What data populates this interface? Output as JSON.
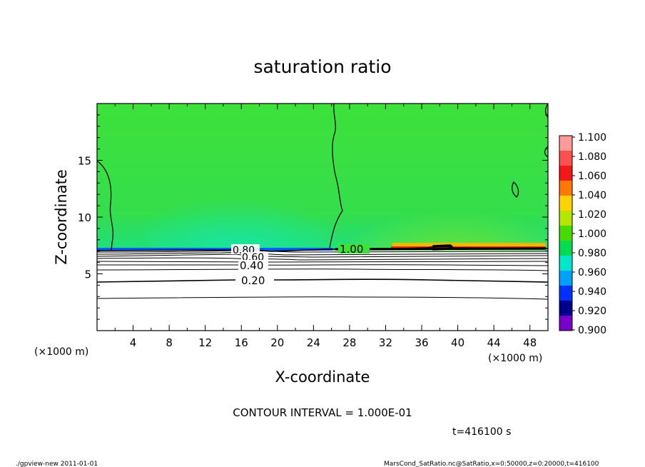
{
  "chart_data": {
    "type": "heatmap",
    "title": "saturation ratio",
    "xlabel": "X-coordinate",
    "ylabel": "Z-coordinate",
    "x_unit": "(×1000 m)",
    "z_unit": "(×1000 m)",
    "xlim": [
      0,
      50
    ],
    "ylim": [
      0,
      20
    ],
    "x_ticks": [
      "4",
      "8",
      "12",
      "16",
      "20",
      "24",
      "28",
      "32",
      "36",
      "40",
      "44",
      "48"
    ],
    "x_tick_values": [
      4,
      8,
      12,
      16,
      20,
      24,
      28,
      32,
      36,
      40,
      44,
      48
    ],
    "y_ticks": [
      "5",
      "10",
      "15"
    ],
    "y_tick_values": [
      5,
      10,
      15
    ],
    "colorbar": {
      "labels": [
        "1.100",
        "1.080",
        "1.060",
        "1.040",
        "1.020",
        "1.000",
        "0.980",
        "0.960",
        "0.940",
        "0.920",
        "0.900"
      ],
      "colors": [
        "#ff9a9a",
        "#ff5050",
        "#f01818",
        "#ff7800",
        "#ffd200",
        "#b4e600",
        "#46dc00",
        "#00dc50",
        "#00e6c8",
        "#00a0ff",
        "#0032ff",
        "#00008c",
        "#7800c8"
      ]
    },
    "contour_labels": [
      {
        "text": "0.80",
        "x": 16.3,
        "z": 7.0
      },
      {
        "text": "0.60",
        "x": 18.0,
        "z": 6.5
      },
      {
        "text": "0.40",
        "x": 17.5,
        "z": 5.6
      },
      {
        "text": "0.20",
        "x": 17.5,
        "z": 4.3
      },
      {
        "text": "1.00",
        "x": 28.5,
        "z": 7.3
      }
    ],
    "contour_interval": "CONTOUR INTERVAL = 1.000E-01",
    "time": "t=416100  s",
    "field": {
      "dominant_value": 1.0,
      "lower_layer_top_z": 7.1,
      "high_zone_x": [
        32,
        50
      ],
      "peak_value_x": 38.5
    }
  },
  "footer": {
    "left": "./gpview-new   2011-01-01",
    "right": "MarsCond_SatRatio.nc@SatRatio,x=0:50000,z=0:20000,t=416100"
  }
}
